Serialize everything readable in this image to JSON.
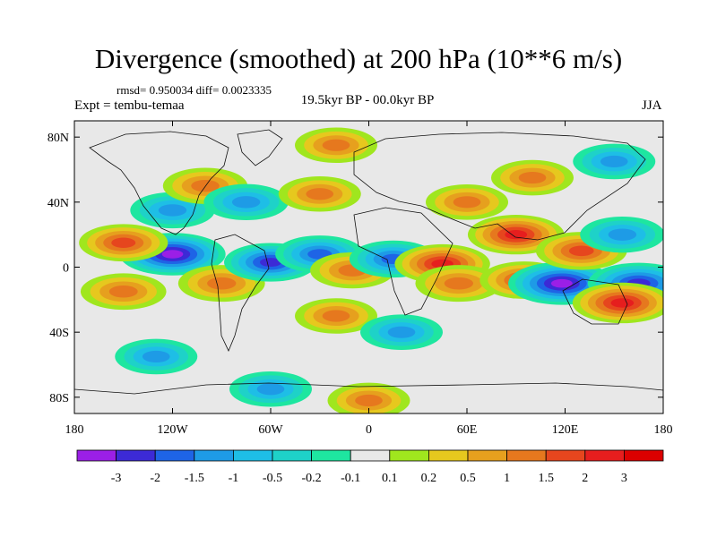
{
  "title": "Divergence (smoothed) at 200 hPa (10**6 m/s)",
  "stats_label": "rmsd= 0.950034 diff= 0.0023335",
  "experiment_label": "Expt = tembu-temaa",
  "period_label": "19.5kyr BP - 00.0kyr BP",
  "season_label": "JJA",
  "chart_data": {
    "type": "heatmap",
    "title": "Divergence (smoothed) at 200 hPa (10**6 m/s)",
    "variable": "Divergence (smoothed)",
    "level": "200 hPa",
    "units": "10**6 m/s",
    "experiment": "tembu-temaa",
    "period": "19.5kyr BP - 00.0kyr BP",
    "season": "JJA",
    "rmsd": 0.950034,
    "diff": 0.0023335,
    "projection": "cylindrical equidistant",
    "xlim": [
      -180,
      180
    ],
    "ylim": [
      -90,
      90
    ],
    "x_ticks": [
      {
        "value": -180,
        "label": "180"
      },
      {
        "value": -120,
        "label": "120W"
      },
      {
        "value": -60,
        "label": "60W"
      },
      {
        "value": 0,
        "label": "0"
      },
      {
        "value": 60,
        "label": "60E"
      },
      {
        "value": 120,
        "label": "120E"
      },
      {
        "value": 180,
        "label": "180"
      }
    ],
    "y_ticks": [
      {
        "value": 80,
        "label": "80N"
      },
      {
        "value": 40,
        "label": "40N"
      },
      {
        "value": 0,
        "label": "0"
      },
      {
        "value": -40,
        "label": "40S"
      },
      {
        "value": -80,
        "label": "80S"
      }
    ],
    "contour_levels": [
      -3,
      -2,
      -1.5,
      -1,
      -0.5,
      -0.2,
      -0.1,
      0.1,
      0.2,
      0.5,
      1,
      1.5,
      2,
      3
    ],
    "colorbar_labels": [
      "-3",
      "-2",
      "-1.5",
      "-1",
      "-0.5",
      "-0.2",
      "-0.1",
      "0.1",
      "0.2",
      "0.5",
      "1",
      "1.5",
      "2",
      "3"
    ],
    "colorbar_colors": [
      "#9b1fe6",
      "#3c2ad6",
      "#1e64e6",
      "#1e9be6",
      "#1ebee6",
      "#1ed2c8",
      "#1ee6a0",
      "#e8e8e8",
      "#a0e61e",
      "#e6c81e",
      "#e6a01e",
      "#e6781e",
      "#e6461e",
      "#e61e1e",
      "#dc0000"
    ],
    "features": [
      {
        "lon": -120,
        "lat": 8,
        "value": -3.2
      },
      {
        "lon": -150,
        "lat": 15,
        "value": 1.6
      },
      {
        "lon": -150,
        "lat": -15,
        "value": 1.3
      },
      {
        "lon": -90,
        "lat": -10,
        "value": 1.4
      },
      {
        "lon": -60,
        "lat": 3,
        "value": -2.0
      },
      {
        "lon": -30,
        "lat": 8,
        "value": -1.6
      },
      {
        "lon": -10,
        "lat": -2,
        "value": 1.2
      },
      {
        "lon": 15,
        "lat": 5,
        "value": -1.5
      },
      {
        "lon": 45,
        "lat": 2,
        "value": 2.2
      },
      {
        "lon": 55,
        "lat": -10,
        "value": 1.4
      },
      {
        "lon": 90,
        "lat": 20,
        "value": 2.3
      },
      {
        "lon": 95,
        "lat": -8,
        "value": 1.6
      },
      {
        "lon": 118,
        "lat": -10,
        "value": -3.3
      },
      {
        "lon": 165,
        "lat": -10,
        "value": -2.8
      },
      {
        "lon": 155,
        "lat": -22,
        "value": 2.6
      },
      {
        "lon": 130,
        "lat": 10,
        "value": 1.8
      },
      {
        "lon": 155,
        "lat": 20,
        "value": -1.2
      },
      {
        "lon": -120,
        "lat": 35,
        "value": -1.2
      },
      {
        "lon": -100,
        "lat": 50,
        "value": 1.2
      },
      {
        "lon": -75,
        "lat": 40,
        "value": -1.2
      },
      {
        "lon": -30,
        "lat": 45,
        "value": 1.0
      },
      {
        "lon": -20,
        "lat": -30,
        "value": 1.0
      },
      {
        "lon": 20,
        "lat": -40,
        "value": -1.0
      },
      {
        "lon": -130,
        "lat": -55,
        "value": -1.0
      },
      {
        "lon": 0,
        "lat": -82,
        "value": 1.0
      },
      {
        "lon": -60,
        "lat": -75,
        "value": -1.0
      },
      {
        "lon": 60,
        "lat": 40,
        "value": 1.0
      },
      {
        "lon": 100,
        "lat": 55,
        "value": 1.0
      },
      {
        "lon": 150,
        "lat": 65,
        "value": -1.0
      },
      {
        "lon": -20,
        "lat": 75,
        "value": 1.0
      }
    ]
  }
}
